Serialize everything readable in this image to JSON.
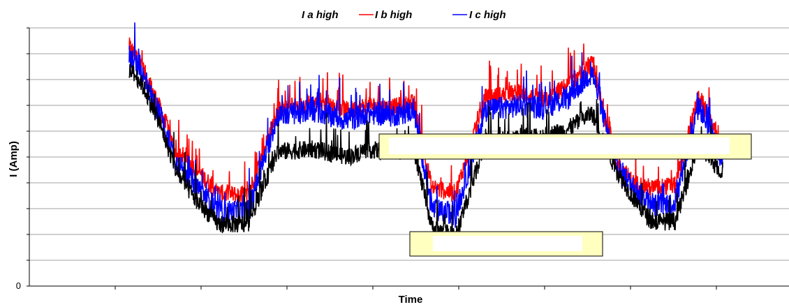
{
  "chart_data": {
    "type": "line",
    "title": "",
    "xlabel": "Time",
    "ylabel": "I (Amp)",
    "y_tick_labels": [
      "0"
    ],
    "ylim": [
      0,
      10
    ],
    "grid": true,
    "legend_placement": "top-center",
    "series": [
      {
        "name": "I a high",
        "color": "#000000"
      },
      {
        "name": "I b high",
        "color": "#ff0000"
      },
      {
        "name": "I c high",
        "color": "#0000ff"
      }
    ],
    "x": [
      0,
      2,
      5,
      8,
      11,
      15,
      20,
      25,
      31,
      37,
      40,
      44,
      48,
      51,
      55,
      60,
      66,
      70,
      74,
      78,
      82,
      85,
      88,
      92,
      96,
      100
    ],
    "values_black": [
      8.4,
      7.9,
      6.4,
      4.4,
      3.4,
      2.4,
      2.4,
      5.2,
      5.3,
      5.0,
      5.3,
      5.2,
      5.3,
      2.3,
      1.9,
      5.6,
      5.7,
      5.8,
      6.1,
      6.7,
      4.5,
      3.4,
      2.5,
      2.5,
      5.5,
      4.3
    ],
    "values_red": [
      9.3,
      8.6,
      7.0,
      5.1,
      4.6,
      3.6,
      3.5,
      6.8,
      7.1,
      6.8,
      7.0,
      6.9,
      7.1,
      3.8,
      3.6,
      7.3,
      7.5,
      7.2,
      7.8,
      8.6,
      4.8,
      4.0,
      3.8,
      3.9,
      7.4,
      5.2
    ],
    "values_blue": [
      9.0,
      8.3,
      6.7,
      4.8,
      4.0,
      2.9,
      2.9,
      6.6,
      6.8,
      6.4,
      6.7,
      6.6,
      6.8,
      3.0,
      2.7,
      6.8,
      7.0,
      6.9,
      7.3,
      8.3,
      4.7,
      3.8,
      3.1,
      3.2,
      7.0,
      4.8
    ]
  },
  "colors": {
    "background": "#ffffff",
    "gridline": "#a0a0a0",
    "overlay_fill": "#ffffc0",
    "overlay_border": "#000000"
  }
}
